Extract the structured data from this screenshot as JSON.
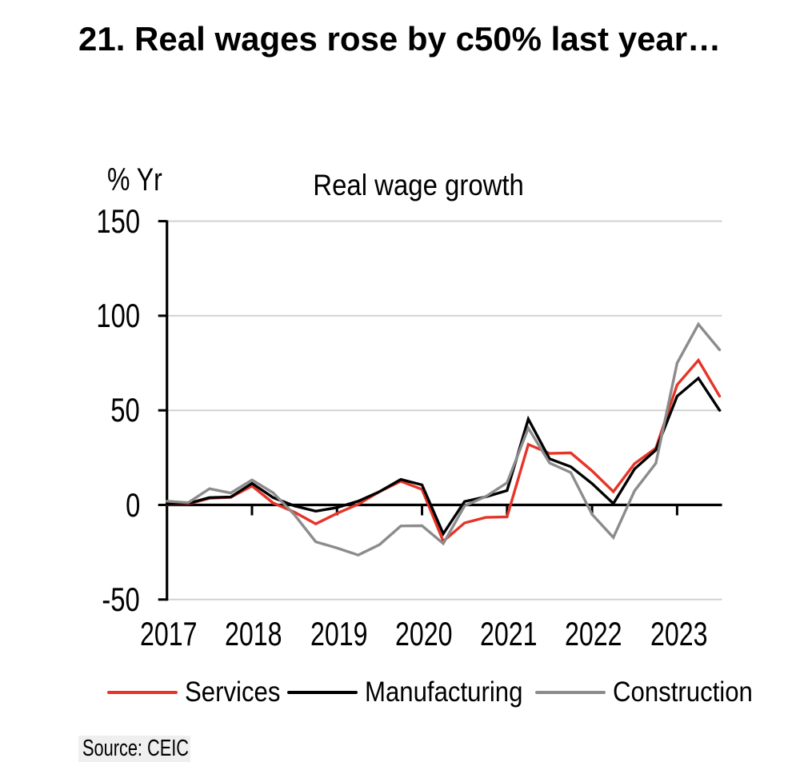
{
  "figure": {
    "title": "21. Real wages rose by c50% last year…",
    "source_note": "Source: CEIC"
  },
  "chart_data": {
    "type": "line",
    "title": "Real wage growth",
    "ylabel": "% Yr",
    "xlabel": "",
    "ylim": [
      -50,
      150
    ],
    "yticks": [
      150,
      100,
      50,
      0,
      -50
    ],
    "xtick_labels": [
      "2017",
      "2018",
      "2019",
      "2020",
      "2021",
      "2022",
      "2023"
    ],
    "grid": "horizontal",
    "legend_position": "bottom",
    "categories": [
      "2017 Q1",
      "2017 Q2",
      "2017 Q3",
      "2017 Q4",
      "2018 Q1",
      "2018 Q2",
      "2018 Q3",
      "2018 Q4",
      "2019 Q1",
      "2019 Q2",
      "2019 Q3",
      "2019 Q4",
      "2020 Q1",
      "2020 Q2",
      "2020 Q3",
      "2020 Q4",
      "2021 Q1",
      "2021 Q2",
      "2021 Q3",
      "2021 Q4",
      "2022 Q1",
      "2022 Q2",
      "2022 Q3",
      "2022 Q4",
      "2023 Q1",
      "2023 Q2",
      "2023 Q3"
    ],
    "series": [
      {
        "name": "Services",
        "color": "#e63428",
        "values": [
          0.3,
          0.5,
          3.5,
          4.0,
          10.0,
          1.0,
          -3.8,
          -10.0,
          -4.5,
          0.4,
          7.0,
          12.5,
          8.2,
          -19.2,
          -9.5,
          -6.6,
          -6.3,
          32.0,
          27.2,
          27.5,
          18.0,
          7.0,
          21.8,
          30.0,
          63.5,
          76.5,
          57.5
        ]
      },
      {
        "name": "Manufacturing",
        "color": "#000000",
        "values": [
          0.5,
          0.8,
          3.9,
          4.2,
          11.4,
          3.9,
          -0.5,
          -3.3,
          -1.4,
          2.0,
          7.0,
          13.5,
          10.6,
          -15.2,
          1.8,
          4.3,
          7.6,
          45.4,
          24.4,
          20.2,
          11.3,
          0.7,
          19.0,
          29.0,
          57.5,
          67.0,
          50.0
        ]
      },
      {
        "name": "Construction",
        "color": "#8c8c8c",
        "values": [
          2.0,
          1.2,
          8.6,
          6.3,
          13.2,
          6.4,
          -5.2,
          -19.5,
          -22.8,
          -26.5,
          -21.0,
          -11.1,
          -11.0,
          -20.4,
          -0.5,
          4.5,
          11.7,
          40.6,
          22.2,
          17.1,
          -5.0,
          -17.2,
          7.5,
          22.0,
          75.0,
          95.5,
          82.0
        ]
      }
    ],
    "axis_color": "#000000",
    "gridline_color": "#d2d2d2"
  }
}
